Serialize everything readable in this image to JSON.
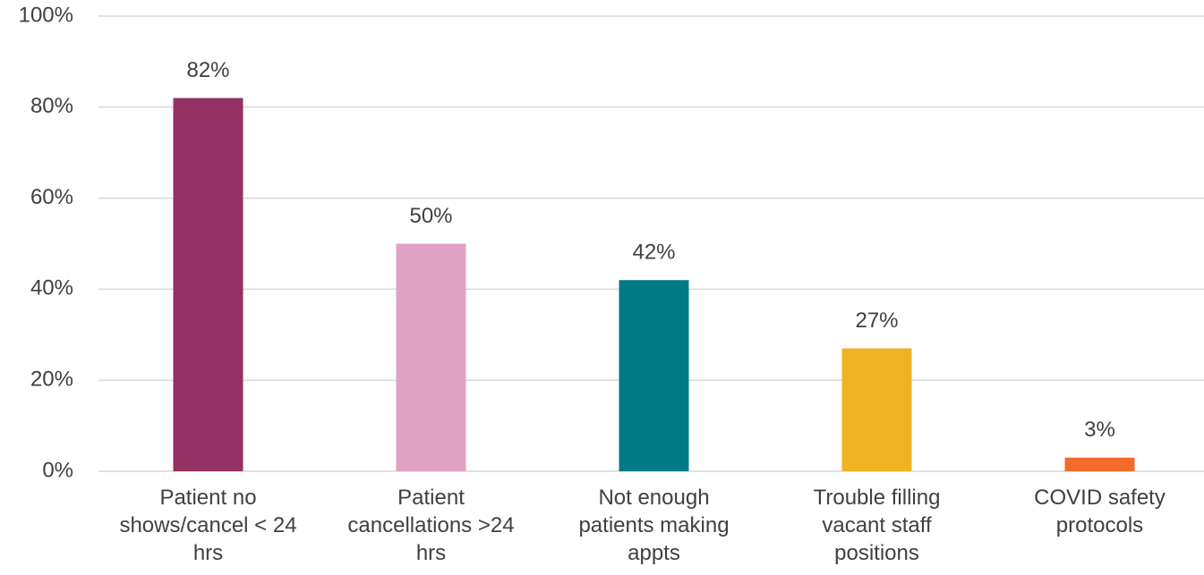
{
  "chart_data": {
    "type": "bar",
    "categories": [
      "Patient no shows/cancel < 24 hrs",
      "Patient cancellations >24 hrs",
      "Not enough patients making appts",
      "Trouble filling vacant staff positions",
      "COVID safety protocols"
    ],
    "values": [
      82,
      50,
      42,
      27,
      3
    ],
    "value_labels": [
      "82%",
      "50%",
      "42%",
      "27%",
      "3%"
    ],
    "colors": [
      "#943162",
      "#e0a3c4",
      "#007a87",
      "#f0b323",
      "#f26b2b"
    ],
    "ylim": [
      0,
      100
    ],
    "yticks": [
      {
        "value": 0,
        "label": "0%"
      },
      {
        "value": 20,
        "label": "20%"
      },
      {
        "value": 40,
        "label": "40%"
      },
      {
        "value": 60,
        "label": "60%"
      },
      {
        "value": 80,
        "label": "80%"
      },
      {
        "value": 100,
        "label": "100%"
      }
    ],
    "grid": true
  }
}
